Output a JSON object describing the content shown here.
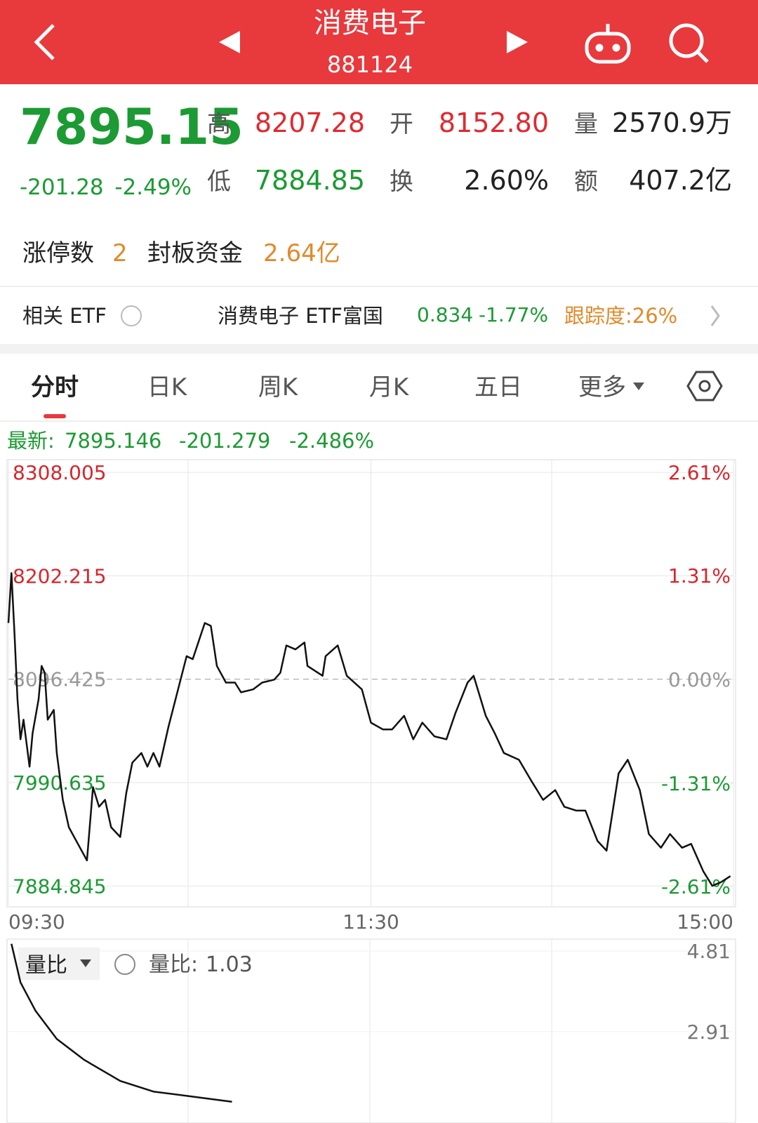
{
  "header": {
    "title": "消费电子",
    "code": "881124"
  },
  "quote": {
    "price": "7895.15",
    "change": "-201.28",
    "change_pct": "-2.49%",
    "stats": [
      {
        "label": "高",
        "value": "8207.28"
      },
      {
        "label": "开",
        "value": "8152.80"
      },
      {
        "label": "量",
        "value": "2570.9万"
      },
      {
        "label": "低",
        "value": "7884.85"
      },
      {
        "label": "换",
        "value": "2.60%"
      },
      {
        "label": "额",
        "value": "407.2亿"
      }
    ]
  },
  "limit": {
    "count_label": "涨停数",
    "count": "2",
    "fund_label": "封板资金",
    "fund": "2.64亿"
  },
  "etf": {
    "label": "相关 ETF",
    "name": "消费电子 ETF富国",
    "price": "0.834",
    "change_pct": "-1.77%",
    "tracking": "跟踪度:26%"
  },
  "tabs": [
    "分时",
    "日K",
    "周K",
    "月K",
    "五日",
    "更多"
  ],
  "latest": {
    "label": "最新:",
    "price": "7895.146",
    "change": "-201.279",
    "change_pct": "-2.486%"
  },
  "chart": {
    "type": "line",
    "color": "#111111",
    "x": [
      0,
      1,
      2,
      3,
      4,
      5,
      7,
      8,
      10,
      11,
      12,
      13,
      15,
      16,
      18,
      20,
      23,
      26,
      28,
      30,
      32,
      34,
      37,
      39,
      41,
      44,
      46,
      48,
      50,
      53,
      57,
      59,
      61,
      65,
      67,
      69,
      72,
      75,
      77,
      81,
      84,
      88,
      90,
      92,
      95,
      98,
      99,
      104,
      105,
      109,
      112,
      117,
      120,
      124,
      127,
      131,
      134,
      137,
      141,
      145,
      148,
      152,
      154,
      158,
      161,
      164,
      169,
      173,
      177,
      181,
      184,
      188,
      191,
      195,
      198,
      202,
      205,
      209,
      212,
      216,
      219,
      223,
      226,
      230,
      233,
      236,
      239
    ],
    "values": [
      8154,
      8205,
      8144,
      8076,
      8035,
      8055,
      8007,
      8041,
      8076,
      8110,
      8103,
      8055,
      8065,
      8021,
      7973,
      7945,
      7928,
      7911,
      7986,
      7966,
      7973,
      7945,
      7935,
      7980,
      8011,
      8021,
      8007,
      8021,
      8007,
      8048,
      8096,
      8120,
      8117,
      8154,
      8151,
      8110,
      8093,
      8093,
      8083,
      8086,
      8093,
      8096,
      8103,
      8131,
      8127,
      8134,
      8110,
      8100,
      8120,
      8131,
      8100,
      8086,
      8052,
      8045,
      8045,
      8059,
      8035,
      8052,
      8038,
      8035,
      8062,
      8093,
      8100,
      8059,
      8041,
      8021,
      8014,
      7993,
      7973,
      7983,
      7966,
      7962,
      7962,
      7931,
      7921,
      8000,
      8014,
      7983,
      7938,
      7924,
      7938,
      7924,
      7928,
      7900,
      7885,
      7889,
      7895
    ],
    "xlim": [
      0,
      240
    ],
    "xticks": [
      {
        "value": 0,
        "label": "09:30"
      },
      {
        "value": 120,
        "label": "11:30"
      },
      {
        "value": 240,
        "label": "15:00"
      }
    ],
    "ylim": [
      7865,
      8321
    ],
    "yticks": [
      8308.005,
      8202.215,
      8096.425,
      7990.635,
      7884.845
    ],
    "y2lim": [
      -2.85,
      2.77
    ],
    "y2ticks": [
      {
        "value": 2.61,
        "label": "2.61%"
      },
      {
        "value": 1.31,
        "label": "1.31%"
      },
      {
        "value": 0,
        "label": "0.00%"
      },
      {
        "value": -1.31,
        "label": "-1.31%"
      },
      {
        "value": -2.61,
        "label": "-2.61%"
      }
    ]
  },
  "volume_chart": {
    "type": "line",
    "label": "量比",
    "readout_label": "量比:",
    "readout": 1.03,
    "color": "#111111",
    "x": [
      1,
      4,
      9,
      16,
      25,
      37,
      48,
      60,
      74
    ],
    "values": [
      4.98,
      4.07,
      3.4,
      2.74,
      2.25,
      1.75,
      1.5,
      1.39,
      1.26
    ],
    "xlim": [
      0,
      240
    ],
    "ylim": [
      0.76,
      5.09
    ],
    "yticks": [
      4.81,
      2.91
    ]
  }
}
